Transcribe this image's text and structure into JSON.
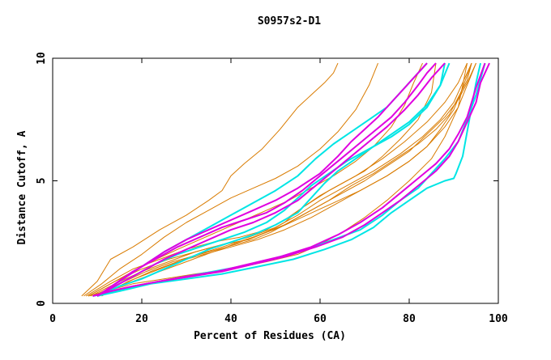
{
  "chart_data": {
    "type": "line",
    "title": "S0957s2-D1",
    "xlabel": "Percent of Residues (CA)",
    "ylabel": "Distance Cutoff, A",
    "xlim": [
      0,
      100
    ],
    "ylim": [
      0,
      10
    ],
    "x_ticks": [
      0,
      20,
      40,
      60,
      80,
      100
    ],
    "y_ticks": [
      0,
      5,
      10
    ],
    "grid": false,
    "colors": {
      "orange": "#d97b00",
      "cyan": "#00e5e5",
      "magenta": "#e000e0"
    },
    "series": [
      {
        "color": "orange",
        "x": [
          6.5,
          10,
          13,
          18,
          24,
          30,
          35,
          38,
          40,
          43,
          47,
          51,
          55,
          58,
          61,
          63,
          64
        ],
        "y": [
          0.3,
          0.9,
          1.8,
          2.3,
          3.0,
          3.6,
          4.2,
          4.6,
          5.2,
          5.7,
          6.3,
          7.1,
          8.0,
          8.5,
          9.0,
          9.4,
          9.8
        ]
      },
      {
        "color": "orange",
        "x": [
          7,
          11,
          15,
          20,
          25,
          30,
          35,
          40,
          45,
          50,
          55,
          60,
          64,
          68,
          71,
          73
        ],
        "y": [
          0.3,
          0.8,
          1.4,
          2.0,
          2.7,
          3.3,
          3.8,
          4.3,
          4.7,
          5.1,
          5.6,
          6.3,
          7.0,
          7.9,
          8.9,
          9.8
        ]
      },
      {
        "color": "orange",
        "x": [
          8,
          12,
          17,
          22,
          28,
          33,
          38,
          43,
          48,
          53,
          58,
          63,
          68,
          72,
          76,
          79,
          81,
          83
        ],
        "y": [
          0.3,
          0.7,
          1.2,
          1.7,
          2.2,
          2.6,
          3.0,
          3.4,
          3.8,
          4.2,
          4.7,
          5.2,
          5.8,
          6.4,
          7.2,
          8.1,
          9.0,
          9.8
        ]
      },
      {
        "color": "orange",
        "x": [
          7.5,
          13,
          18,
          24,
          30,
          36,
          42,
          48,
          52,
          56,
          60,
          65,
          70,
          74,
          78,
          82,
          85,
          86
        ],
        "y": [
          0.3,
          0.9,
          1.4,
          1.8,
          2.2,
          2.5,
          2.7,
          3.0,
          3.4,
          3.9,
          4.4,
          4.9,
          5.4,
          6.0,
          6.7,
          7.5,
          8.6,
          9.8
        ]
      },
      {
        "color": "orange",
        "x": [
          8,
          14,
          20,
          26,
          32,
          38,
          44,
          48,
          52,
          56,
          62,
          68,
          74,
          79,
          84,
          88,
          91,
          93
        ],
        "y": [
          0.3,
          0.9,
          1.4,
          1.8,
          2.1,
          2.4,
          2.6,
          2.9,
          3.3,
          3.9,
          4.6,
          5.2,
          5.9,
          6.6,
          7.4,
          8.2,
          9.0,
          9.8
        ]
      },
      {
        "color": "orange",
        "x": [
          9,
          15,
          21,
          27,
          33,
          39,
          45,
          49,
          53,
          57,
          62,
          67,
          72,
          77,
          82,
          86,
          89,
          91,
          93,
          94
        ],
        "y": [
          0.3,
          0.8,
          1.3,
          1.7,
          2.0,
          2.3,
          2.6,
          2.9,
          3.3,
          3.7,
          4.2,
          4.8,
          5.3,
          5.9,
          6.5,
          7.1,
          7.7,
          8.4,
          9.1,
          9.8
        ]
      },
      {
        "color": "orange",
        "x": [
          8.5,
          14,
          20,
          26,
          32,
          38,
          44,
          50,
          55,
          60,
          66,
          72,
          78,
          83,
          87,
          90,
          92,
          94
        ],
        "y": [
          0.3,
          0.8,
          1.3,
          1.7,
          2.1,
          2.4,
          2.7,
          3.1,
          3.6,
          4.2,
          4.8,
          5.4,
          6.1,
          6.8,
          7.5,
          8.2,
          9.0,
          9.8
        ]
      },
      {
        "color": "orange",
        "x": [
          10,
          16,
          22,
          28,
          34,
          40,
          46,
          52,
          58,
          64,
          70,
          75,
          80,
          84,
          88,
          91,
          93,
          95
        ],
        "y": [
          0.3,
          0.8,
          1.3,
          1.7,
          2.0,
          2.3,
          2.6,
          3.0,
          3.5,
          4.1,
          4.7,
          5.2,
          5.8,
          6.4,
          7.2,
          8.0,
          8.9,
          9.8
        ]
      },
      {
        "color": "orange",
        "x": [
          9,
          15,
          21,
          27,
          33,
          39,
          45,
          51,
          57,
          63,
          69,
          75,
          80,
          84,
          87,
          90,
          92,
          94
        ],
        "y": [
          0.3,
          0.7,
          1.1,
          1.5,
          1.9,
          2.3,
          2.7,
          3.1,
          3.6,
          4.1,
          4.6,
          5.2,
          5.8,
          6.4,
          7.1,
          7.9,
          8.8,
          9.8
        ]
      },
      {
        "color": "orange",
        "x": [
          11,
          17,
          24,
          31,
          38,
          45,
          52,
          58,
          64,
          70,
          75,
          80,
          84,
          88,
          91,
          93,
          95
        ],
        "y": [
          0.3,
          0.9,
          1.4,
          1.9,
          2.3,
          2.7,
          3.2,
          3.8,
          4.4,
          5.0,
          5.6,
          6.2,
          6.9,
          7.6,
          8.3,
          9.0,
          9.8
        ]
      },
      {
        "color": "orange",
        "x": [
          8,
          12,
          18,
          25,
          32,
          40,
          48,
          55,
          60,
          65,
          70,
          75,
          80,
          85,
          88,
          91,
          93
        ],
        "y": [
          0.3,
          0.5,
          0.8,
          1.0,
          1.2,
          1.4,
          1.7,
          2.0,
          2.4,
          2.9,
          3.5,
          4.2,
          5.0,
          5.9,
          6.8,
          8.0,
          9.8
        ]
      },
      {
        "color": "cyan",
        "x": [
          10,
          15,
          20,
          25,
          30,
          35,
          40,
          45,
          50,
          55,
          59,
          63,
          67,
          71,
          75,
          78,
          80,
          82,
          84
        ],
        "y": [
          0.3,
          0.9,
          1.5,
          2.1,
          2.6,
          3.1,
          3.6,
          4.1,
          4.6,
          5.2,
          5.9,
          6.5,
          7.0,
          7.5,
          8.0,
          8.6,
          9.0,
          9.4,
          9.8
        ]
      },
      {
        "color": "cyan",
        "x": [
          10,
          14,
          18,
          23,
          28,
          33,
          38,
          43,
          48,
          52,
          55,
          58,
          62,
          66,
          71,
          76,
          80,
          84,
          87,
          88
        ],
        "y": [
          0.3,
          0.7,
          1.1,
          1.6,
          2.0,
          2.3,
          2.6,
          2.9,
          3.3,
          3.8,
          4.3,
          4.8,
          5.3,
          5.8,
          6.3,
          6.8,
          7.3,
          8.0,
          8.9,
          9.8
        ]
      },
      {
        "color": "cyan",
        "x": [
          10,
          15,
          20,
          25,
          30,
          35,
          40,
          45,
          50,
          55,
          58,
          61,
          64,
          68,
          72,
          76,
          80,
          84,
          87,
          89
        ],
        "y": [
          0.3,
          0.7,
          1.0,
          1.4,
          1.8,
          2.2,
          2.5,
          2.8,
          3.2,
          3.7,
          4.3,
          4.9,
          5.4,
          5.9,
          6.4,
          6.9,
          7.4,
          8.1,
          8.9,
          9.8
        ]
      },
      {
        "color": "cyan",
        "x": [
          10,
          15,
          22,
          30,
          38,
          46,
          54,
          61,
          67,
          72,
          76,
          80,
          84,
          88,
          90,
          90.5,
          92,
          93,
          94,
          95,
          96
        ],
        "y": [
          0.3,
          0.5,
          0.8,
          1.0,
          1.2,
          1.5,
          1.8,
          2.2,
          2.6,
          3.1,
          3.7,
          4.2,
          4.7,
          5.0,
          5.1,
          5.3,
          6.0,
          7.0,
          8.0,
          9.0,
          9.8
        ]
      },
      {
        "color": "cyan",
        "x": [
          9,
          12,
          16,
          21,
          27,
          33,
          39,
          45,
          51,
          57,
          63,
          69,
          74,
          78,
          82,
          85,
          88,
          91,
          93,
          95,
          97
        ],
        "y": [
          0.3,
          0.4,
          0.6,
          0.8,
          1.0,
          1.2,
          1.4,
          1.6,
          1.9,
          2.2,
          2.6,
          3.0,
          3.6,
          4.2,
          4.7,
          5.3,
          5.9,
          6.6,
          7.5,
          8.5,
          9.8
        ]
      },
      {
        "color": "magenta",
        "x": [
          10,
          15,
          20,
          25,
          30,
          35,
          40,
          45,
          50,
          55,
          60,
          64,
          67,
          70,
          73,
          76,
          79,
          82,
          84
        ],
        "y": [
          0.3,
          0.9,
          1.5,
          2.1,
          2.6,
          3.0,
          3.4,
          3.8,
          4.2,
          4.7,
          5.3,
          6.0,
          6.6,
          7.1,
          7.6,
          8.2,
          8.8,
          9.4,
          9.8
        ]
      },
      {
        "color": "magenta",
        "x": [
          10,
          14,
          18,
          23,
          28,
          33,
          38,
          43,
          48,
          52,
          56,
          60,
          64,
          68,
          72,
          76,
          79,
          82,
          84,
          86
        ],
        "y": [
          0.3,
          0.8,
          1.3,
          1.8,
          2.3,
          2.7,
          3.1,
          3.4,
          3.7,
          4.1,
          4.6,
          5.2,
          5.8,
          6.4,
          7.0,
          7.6,
          8.2,
          8.9,
          9.4,
          9.8
        ]
      },
      {
        "color": "magenta",
        "x": [
          10,
          15,
          20,
          25,
          30,
          35,
          40,
          45,
          50,
          55,
          59,
          63,
          67,
          71,
          75,
          79,
          82,
          85,
          88
        ],
        "y": [
          0.3,
          0.8,
          1.3,
          1.8,
          2.2,
          2.6,
          3.0,
          3.3,
          3.7,
          4.2,
          4.8,
          5.4,
          6.0,
          6.6,
          7.2,
          7.9,
          8.5,
          9.2,
          9.8
        ]
      },
      {
        "color": "magenta",
        "x": [
          9,
          13,
          18,
          24,
          30,
          37,
          44,
          51,
          58,
          64,
          69,
          74,
          78,
          82,
          86,
          89,
          91,
          93,
          94,
          95,
          96,
          97
        ],
        "y": [
          0.3,
          0.5,
          0.7,
          0.9,
          1.1,
          1.3,
          1.6,
          1.9,
          2.3,
          2.8,
          3.3,
          3.9,
          4.5,
          5.1,
          5.7,
          6.3,
          6.9,
          7.6,
          8.2,
          8.8,
          9.3,
          9.8
        ]
      },
      {
        "color": "magenta",
        "x": [
          9,
          13,
          18,
          24,
          31,
          38,
          45,
          52,
          59,
          65,
          70,
          74,
          78,
          82,
          86,
          89,
          91,
          93,
          95,
          96,
          98
        ],
        "y": [
          0.3,
          0.5,
          0.7,
          0.9,
          1.1,
          1.3,
          1.6,
          1.9,
          2.3,
          2.7,
          3.2,
          3.7,
          4.2,
          4.8,
          5.4,
          6.0,
          6.6,
          7.4,
          8.2,
          9.0,
          9.8
        ]
      }
    ]
  }
}
